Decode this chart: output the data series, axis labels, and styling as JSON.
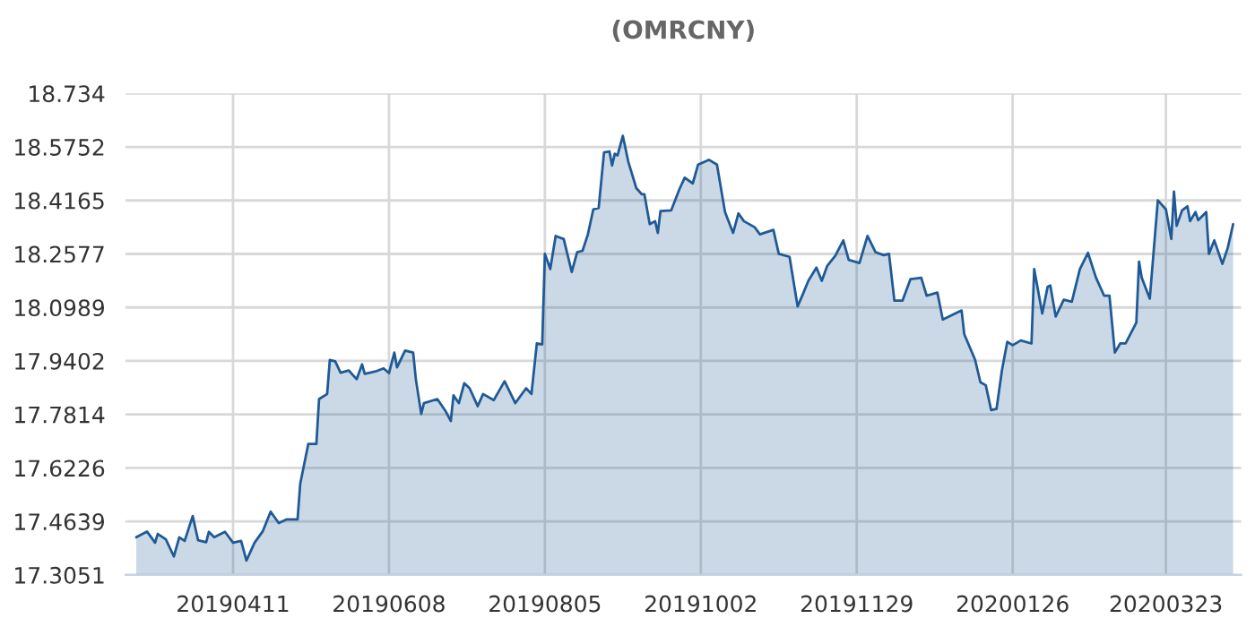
{
  "chart_data": {
    "type": "area",
    "title": "(OMRCNY)",
    "x": [
      "2019-03-06",
      "2019-03-10",
      "2019-03-13",
      "2019-03-14",
      "2019-03-17",
      "2019-03-20",
      "2019-03-22",
      "2019-03-24",
      "2019-03-27",
      "2019-03-29",
      "2019-04-01",
      "2019-04-02",
      "2019-04-04",
      "2019-04-08",
      "2019-04-11",
      "2019-04-14",
      "2019-04-16",
      "2019-04-19",
      "2019-04-22",
      "2019-04-25",
      "2019-04-28",
      "2019-05-01",
      "2019-05-05",
      "2019-05-06",
      "2019-05-09",
      "2019-05-12",
      "2019-05-13",
      "2019-05-16",
      "2019-05-17",
      "2019-05-19",
      "2019-05-21",
      "2019-05-24",
      "2019-05-27",
      "2019-05-29",
      "2019-05-30",
      "2019-06-03",
      "2019-06-06",
      "2019-06-08",
      "2019-06-10",
      "2019-06-11",
      "2019-06-14",
      "2019-06-17",
      "2019-06-18",
      "2019-06-20",
      "2019-06-21",
      "2019-06-26",
      "2019-06-29",
      "2019-07-01",
      "2019-07-02",
      "2019-07-04",
      "2019-07-06",
      "2019-07-08",
      "2019-07-11",
      "2019-07-13",
      "2019-07-17",
      "2019-07-21",
      "2019-07-25",
      "2019-07-29",
      "2019-07-31",
      "2019-08-02",
      "2019-08-04",
      "2019-08-05",
      "2019-08-07",
      "2019-08-09",
      "2019-08-12",
      "2019-08-15",
      "2019-08-17",
      "2019-08-19",
      "2019-08-21",
      "2019-08-23",
      "2019-08-25",
      "2019-08-27",
      "2019-08-29",
      "2019-08-30",
      "2019-08-31",
      "2019-09-01",
      "2019-09-03",
      "2019-09-05",
      "2019-09-08",
      "2019-09-10",
      "2019-09-11",
      "2019-09-13",
      "2019-09-15",
      "2019-09-16",
      "2019-09-17",
      "2019-09-21",
      "2019-09-24",
      "2019-09-26",
      "2019-09-29",
      "2019-10-01",
      "2019-10-05",
      "2019-10-08",
      "2019-10-11",
      "2019-10-14",
      "2019-10-16",
      "2019-10-18",
      "2019-10-22",
      "2019-10-24",
      "2019-10-29",
      "2019-10-31",
      "2019-11-04",
      "2019-11-07",
      "2019-11-09",
      "2019-11-11",
      "2019-11-14",
      "2019-11-16",
      "2019-11-18",
      "2019-11-21",
      "2019-11-24",
      "2019-11-26",
      "2019-11-30",
      "2019-12-03",
      "2019-12-06",
      "2019-12-09",
      "2019-12-11",
      "2019-12-13",
      "2019-12-16",
      "2019-12-19",
      "2019-12-23",
      "2019-12-25",
      "2019-12-29",
      "2019-12-31",
      "2020-01-07",
      "2020-01-08",
      "2020-01-12",
      "2020-01-14",
      "2020-01-16",
      "2020-01-18",
      "2020-01-20",
      "2020-01-22",
      "2020-01-24",
      "2020-01-26",
      "2020-01-29",
      "2020-02-02",
      "2020-02-03",
      "2020-02-06",
      "2020-02-08",
      "2020-02-09",
      "2020-02-11",
      "2020-02-14",
      "2020-02-17",
      "2020-02-20",
      "2020-02-23",
      "2020-02-26",
      "2020-02-29",
      "2020-03-02",
      "2020-03-04",
      "2020-03-06",
      "2020-03-08",
      "2020-03-12",
      "2020-03-13",
      "2020-03-14",
      "2020-03-17",
      "2020-03-20",
      "2020-03-23",
      "2020-03-25",
      "2020-03-26",
      "2020-03-27",
      "2020-03-29",
      "2020-03-31",
      "2020-04-01",
      "2020-04-03",
      "2020-04-04",
      "2020-04-07",
      "2020-04-08",
      "2020-04-10",
      "2020-04-13",
      "2020-04-15",
      "2020-04-17"
    ],
    "series": [
      {
        "color": "#1f5a96",
        "values": [
          17.417,
          17.434,
          17.401,
          17.427,
          17.411,
          17.36,
          17.417,
          17.406,
          17.48,
          17.408,
          17.402,
          17.433,
          17.417,
          17.433,
          17.401,
          17.406,
          17.348,
          17.401,
          17.434,
          17.493,
          17.459,
          17.47,
          17.47,
          17.576,
          17.694,
          17.694,
          17.827,
          17.842,
          17.943,
          17.939,
          17.905,
          17.912,
          17.886,
          17.93,
          17.902,
          17.909,
          17.918,
          17.904,
          17.965,
          17.921,
          17.971,
          17.965,
          17.886,
          17.783,
          17.815,
          17.827,
          17.792,
          17.762,
          17.838,
          17.815,
          17.874,
          17.859,
          17.806,
          17.842,
          17.824,
          17.88,
          17.815,
          17.859,
          17.842,
          17.992,
          17.989,
          18.258,
          18.213,
          18.311,
          18.302,
          18.204,
          18.263,
          18.267,
          18.316,
          18.39,
          18.394,
          18.559,
          18.562,
          18.52,
          18.555,
          18.55,
          18.608,
          18.532,
          18.453,
          18.435,
          18.435,
          18.346,
          18.355,
          18.32,
          18.385,
          18.387,
          18.449,
          18.484,
          18.467,
          18.523,
          18.537,
          18.523,
          18.382,
          18.32,
          18.378,
          18.355,
          18.337,
          18.316,
          18.329,
          18.258,
          18.249,
          18.102,
          18.139,
          18.178,
          18.217,
          18.178,
          18.222,
          18.252,
          18.298,
          18.24,
          18.231,
          18.311,
          18.263,
          18.254,
          18.258,
          18.119,
          18.119,
          18.183,
          18.187,
          18.134,
          18.143,
          18.063,
          18.09,
          18.019,
          17.944,
          17.877,
          17.868,
          17.794,
          17.798,
          17.912,
          17.997,
          17.987,
          18.001,
          17.992,
          18.213,
          18.081,
          18.16,
          18.164,
          18.072,
          18.122,
          18.116,
          18.213,
          18.261,
          18.187,
          18.134,
          18.134,
          17.965,
          17.992,
          17.992,
          18.054,
          18.235,
          18.187,
          18.125,
          18.417,
          18.39,
          18.302,
          18.443,
          18.341,
          18.387,
          18.399,
          18.355,
          18.382,
          18.358,
          18.382,
          18.258,
          18.298,
          18.228,
          18.276,
          18.346
        ]
      }
    ],
    "xlim": [
      "2019-03-02",
      "2020-04-20"
    ],
    "xticks": [
      {
        "value": "2019-04-11",
        "label": "20190411"
      },
      {
        "value": "2019-06-08",
        "label": "20190608"
      },
      {
        "value": "2019-08-05",
        "label": "20190805"
      },
      {
        "value": "2019-10-02",
        "label": "20191002"
      },
      {
        "value": "2019-11-29",
        "label": "20191129"
      },
      {
        "value": "2020-01-26",
        "label": "20200126"
      },
      {
        "value": "2020-03-23",
        "label": "20200323"
      }
    ],
    "ylim": [
      17.3051,
      18.734
    ],
    "yticks": [
      17.3051,
      17.4639,
      17.6226,
      17.7814,
      17.9402,
      18.0989,
      18.2577,
      18.4165,
      18.5752,
      18.734
    ],
    "grid": true,
    "legend": false,
    "line_style": "solid",
    "marker": "none"
  }
}
